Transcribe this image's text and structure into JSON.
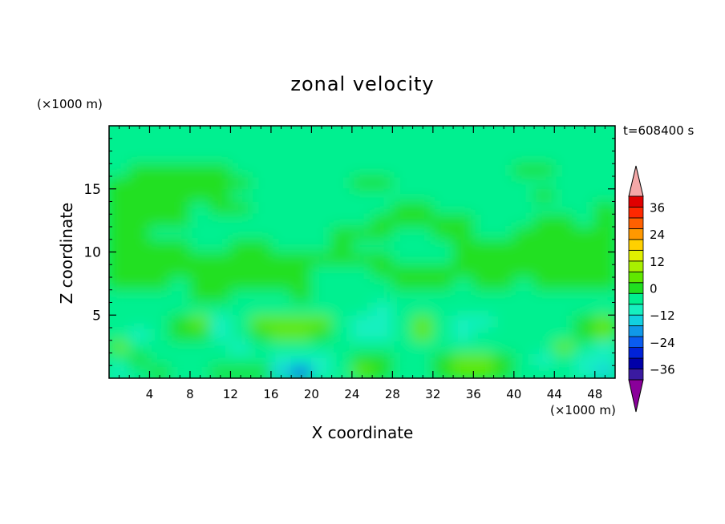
{
  "chart_data": {
    "type": "heatmap",
    "title": "zonal velocity",
    "xlabel": "X coordinate",
    "ylabel": "Z coordinate",
    "x_unit": "(×1000 m)",
    "y_unit": "(×1000 m)",
    "time_label": "t=608400 s",
    "xlim": [
      0,
      50
    ],
    "ylim": [
      0,
      20
    ],
    "x_ticks": [
      4,
      8,
      12,
      16,
      20,
      24,
      28,
      32,
      36,
      40,
      44,
      48
    ],
    "y_ticks": [
      5,
      10,
      15
    ],
    "colorbar": {
      "labeled_levels": [
        36,
        24,
        12,
        0,
        -12,
        -24,
        -36
      ],
      "colors": [
        "#8a009a",
        "#3a1aa0",
        "#0000a8",
        "#0022d8",
        "#0a5cf0",
        "#1098e8",
        "#12d0e0",
        "#16f0c0",
        "#00f090",
        "#20e020",
        "#60e800",
        "#a8f000",
        "#e0f000",
        "#ffd000",
        "#ff9800",
        "#ff6000",
        "#ff2800",
        "#e00000",
        "#f4a8a8"
      ]
    },
    "description_grid": {
      "x": [
        1,
        3,
        5,
        7,
        9,
        11,
        13,
        15,
        17,
        19,
        21,
        23,
        25,
        27,
        29,
        31,
        33,
        35,
        37,
        39,
        41,
        43,
        45,
        47,
        49
      ],
      "z": [
        0.5,
        1.5,
        2.5,
        3.5,
        4.5,
        5.5,
        6.5,
        7.5,
        8.5,
        9.5,
        10.5,
        11.5,
        12.5,
        13.5,
        14.5,
        15.5,
        16.5,
        17.5,
        18.5,
        19.5
      ],
      "values": [
        [
          -8,
          -3,
          2,
          -1,
          -3,
          1,
          2,
          3,
          -12,
          -18,
          -8,
          -4,
          5,
          2,
          -2,
          -3,
          1,
          4,
          5,
          2,
          -2,
          -1,
          -3,
          -8,
          -10
        ],
        [
          -3,
          3,
          -4,
          -4,
          -2,
          -3,
          -4,
          -2,
          -6,
          -8,
          -5,
          -3,
          2,
          3,
          -3,
          -4,
          2,
          5,
          4,
          2,
          -2,
          -5,
          -3,
          -5,
          -7
        ],
        [
          5,
          -1,
          -4,
          -3,
          -2,
          -3,
          -6,
          -4,
          -3,
          -4,
          -4,
          -2,
          -3,
          -3,
          -4,
          -3,
          -3,
          -3,
          -2,
          -3,
          -3,
          -2,
          4,
          -3,
          -5
        ],
        [
          -3,
          -5,
          -4,
          3,
          1,
          -6,
          -3,
          3,
          4,
          4,
          3,
          -3,
          -6,
          -5,
          -3,
          4,
          -3,
          -6,
          -4,
          -3,
          -3,
          -3,
          -2,
          2,
          4
        ],
        [
          -2,
          -2,
          -4,
          2,
          4,
          -5,
          -3,
          4,
          6,
          7,
          5,
          -3,
          -8,
          -7,
          -3,
          5,
          -3,
          -5,
          -6,
          -4,
          -3,
          -2,
          -3,
          3,
          5
        ],
        [
          -2,
          -3,
          -4,
          -2,
          -3,
          -3,
          -3,
          -3,
          -2,
          -3,
          -2,
          -2,
          -4,
          -5,
          -3,
          -2,
          -3,
          -3,
          -3,
          -4,
          -3,
          -2,
          -4,
          -2,
          -2
        ],
        [
          -2,
          -1,
          -2,
          -1,
          1,
          2,
          -2,
          -2,
          -1,
          1,
          -2,
          -2,
          -2,
          -2,
          -3,
          -2,
          -2,
          -3,
          -2,
          -2,
          -3,
          -2,
          -2,
          -2,
          -2
        ],
        [
          1,
          1,
          2,
          -1,
          1,
          1,
          2,
          1,
          2,
          1,
          -1,
          -2,
          -1,
          -1,
          2,
          2,
          1,
          -1,
          1,
          1,
          -1,
          1,
          1,
          1,
          1
        ],
        [
          2,
          2,
          2,
          2,
          2,
          2,
          1,
          2,
          1,
          1,
          -1,
          -2,
          -1,
          1,
          2,
          2,
          2,
          2,
          2,
          1,
          1,
          2,
          2,
          2,
          2
        ],
        [
          2,
          2,
          2,
          1,
          2,
          1,
          2,
          2,
          2,
          2,
          2,
          2,
          2,
          2,
          -1,
          -2,
          -1,
          2,
          2,
          2,
          2,
          2,
          2,
          2,
          2
        ],
        [
          1,
          2,
          2,
          2,
          -1,
          -2,
          1,
          2,
          -1,
          -1,
          -1,
          1,
          -1,
          -2,
          -2,
          -2,
          -1,
          1,
          2,
          2,
          2,
          1,
          2,
          2,
          2
        ],
        [
          2,
          1,
          -1,
          -1,
          -2,
          -2,
          -1,
          -2,
          -2,
          -2,
          -1,
          2,
          1,
          1,
          -1,
          -2,
          2,
          2,
          -1,
          -2,
          1,
          1,
          2,
          2,
          1
        ],
        [
          2,
          2,
          1,
          1,
          -2,
          -2,
          -1,
          -2,
          -2,
          -3,
          -1,
          -2,
          -1,
          1,
          1,
          2,
          2,
          1,
          -2,
          -2,
          -2,
          2,
          2,
          -1,
          2
        ],
        [
          1,
          2,
          2,
          2,
          -1,
          2,
          2,
          -1,
          -1,
          -2,
          -2,
          -1,
          -2,
          -2,
          1,
          1,
          -1,
          -1,
          -1,
          -2,
          -2,
          -2,
          -2,
          -2,
          1
        ],
        [
          2,
          2,
          2,
          2,
          2,
          1,
          -1,
          -1,
          -1,
          -2,
          -2,
          -2,
          -2,
          -2,
          -1,
          -2,
          -2,
          -2,
          -2,
          -2,
          -1,
          2,
          -1,
          -2,
          -2
        ],
        [
          1,
          2,
          2,
          1,
          1,
          2,
          1,
          -2,
          -2,
          -2,
          -2,
          -2,
          2,
          2,
          -1,
          -2,
          -2,
          -2,
          -2,
          -2,
          -2,
          -2,
          -2,
          -2,
          -2
        ],
        [
          -2,
          1,
          2,
          2,
          2,
          1,
          -1,
          -2,
          -2,
          -1,
          -2,
          -2,
          -2,
          -2,
          -1,
          -2,
          -2,
          -2,
          -2,
          -2,
          2,
          2,
          -2,
          -2,
          -2
        ],
        [
          -2,
          -1,
          -2,
          -2,
          -2,
          -2,
          -2,
          -2,
          -2,
          -2,
          -2,
          -2,
          -2,
          -2,
          -2,
          -2,
          -2,
          -2,
          -2,
          -2,
          -2,
          -2,
          -1,
          -2,
          -2
        ],
        [
          -2,
          -2,
          -2,
          -2,
          -2,
          -2,
          -2,
          -2,
          -2,
          -2,
          -2,
          -2,
          -2,
          -2,
          -2,
          -2,
          -2,
          -2,
          -2,
          -2,
          -2,
          -2,
          -2,
          -2,
          -2
        ],
        [
          -2,
          -2,
          -3,
          -2,
          -2,
          -2,
          -2,
          -2,
          -2,
          -2,
          -2,
          -2,
          -2,
          -2,
          -2,
          -2,
          -2,
          -2,
          -2,
          -2,
          -2,
          -2,
          -2,
          -2,
          -2
        ]
      ]
    }
  }
}
